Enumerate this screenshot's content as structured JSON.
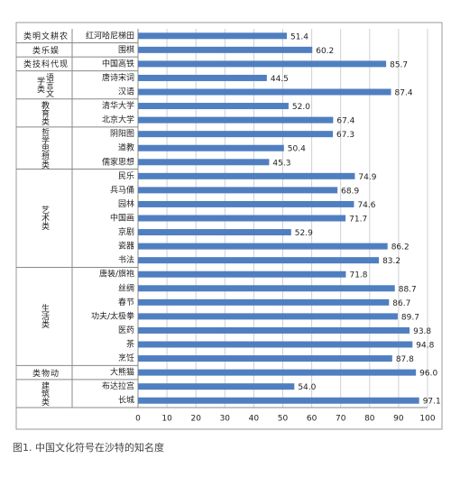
{
  "chart_data": {
    "type": "bar",
    "orientation": "horizontal",
    "color": "#4f7fc0",
    "grid": true,
    "xlim": [
      0,
      100
    ],
    "xticks": [
      0,
      10,
      20,
      30,
      40,
      50,
      60,
      70,
      80,
      90,
      100
    ],
    "caption": "图1. 中国文化符号在沙特的知名度",
    "groups": [
      {
        "name": "农耕文明类",
        "categories": [
          "红河哈尼梯田"
        ],
        "values": [
          51.4
        ],
        "value_labels": [
          "51.4"
        ]
      },
      {
        "name": "娱乐类",
        "categories": [
          "围棋"
        ],
        "values": [
          60.2
        ],
        "value_labels": [
          "60.2"
        ]
      },
      {
        "name": "现代科技类",
        "categories": [
          "中国高铁"
        ],
        "values": [
          85.7
        ],
        "value_labels": [
          "85.7"
        ]
      },
      {
        "name": "语言文学类",
        "categories": [
          "唐诗宋词",
          "汉语"
        ],
        "values": [
          44.5,
          87.4
        ],
        "value_labels": [
          "44.5",
          "87.4"
        ]
      },
      {
        "name": "教育类",
        "categories": [
          "清华大学",
          "北京大学"
        ],
        "values": [
          52.0,
          67.4
        ],
        "value_labels": [
          "52.0",
          "67.4"
        ]
      },
      {
        "name": "哲学思想类",
        "categories": [
          "阴阳图",
          "道教",
          "儒家思想"
        ],
        "values": [
          67.3,
          50.4,
          45.3
        ],
        "value_labels": [
          "67.3",
          "50.4",
          "45.3"
        ]
      },
      {
        "name": "艺术类",
        "categories": [
          "民乐",
          "兵马俑",
          "园林",
          "中国画",
          "京剧",
          "瓷器",
          "书法"
        ],
        "values": [
          74.9,
          68.9,
          74.6,
          71.7,
          52.9,
          86.2,
          83.2
        ],
        "value_labels": [
          "74.9",
          "68.9",
          "74.6",
          "71.7",
          "52.9",
          "86.2",
          "83.2"
        ]
      },
      {
        "name": "生活类",
        "categories": [
          "唐装/旗袍",
          "丝绸",
          "春节",
          "功夫/太极拳",
          "医药",
          "茶",
          "烹饪"
        ],
        "values": [
          71.8,
          88.7,
          86.7,
          89.7,
          93.8,
          94.8,
          87.8
        ],
        "value_labels": [
          "71.8",
          "88.7",
          "86.7",
          "89.7",
          "93.8",
          "94.8",
          "87.8"
        ]
      },
      {
        "name": "动物类",
        "categories": [
          "大熊猫"
        ],
        "values": [
          96.0
        ],
        "value_labels": [
          "96.0"
        ]
      },
      {
        "name": "建筑类",
        "categories": [
          "布达拉宫",
          "长城"
        ],
        "values": [
          54.0,
          97.1
        ],
        "value_labels": [
          "54.0",
          "97.1"
        ]
      }
    ]
  }
}
